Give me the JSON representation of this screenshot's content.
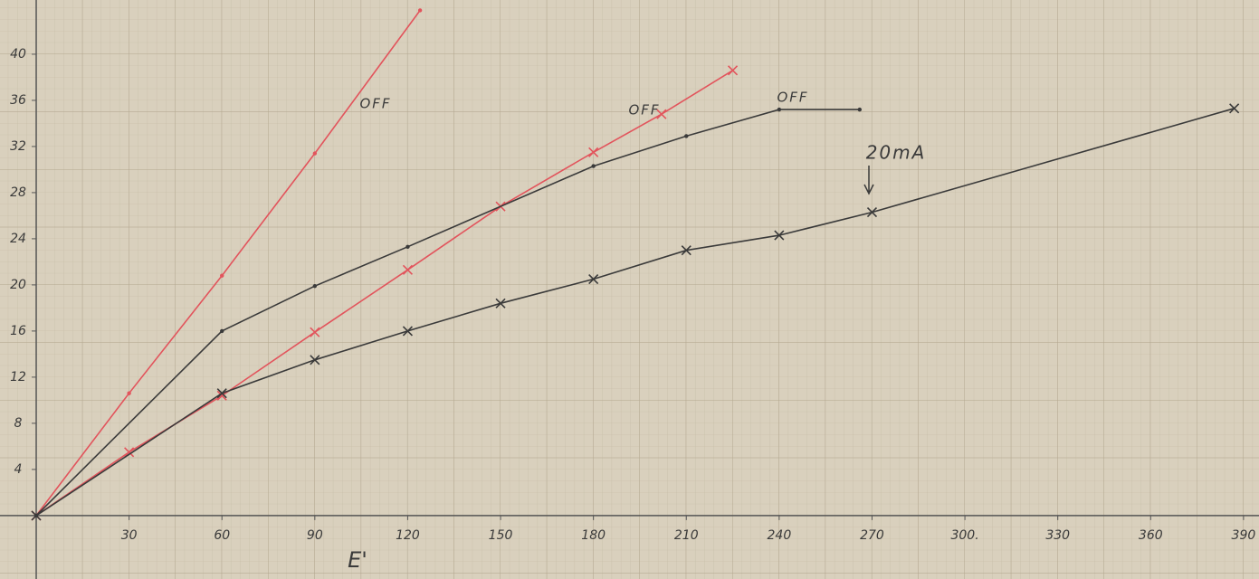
{
  "chart_data": {
    "type": "line",
    "x_label": "E'",
    "xlim": [
      -11.7,
      395
    ],
    "ylim": [
      -5.5,
      44.7
    ],
    "xticks": [
      30,
      60,
      90,
      120,
      150,
      180,
      210,
      240,
      270,
      {
        "value": 300,
        "label": "300."
      },
      330,
      360,
      390
    ],
    "yticks": [
      4,
      8,
      12,
      16,
      20,
      24,
      28,
      32,
      36,
      40
    ],
    "grid": true,
    "series": [
      {
        "color": "#e2545c",
        "marker": "dot",
        "x": [
          0,
          30,
          60,
          90,
          124
        ],
        "values": [
          0,
          10.6,
          20.8,
          31.4,
          43.8
        ]
      },
      {
        "color": "#e2545c",
        "marker": "x",
        "x": [
          0,
          30,
          60,
          90,
          120,
          150,
          180,
          202,
          225
        ],
        "values": [
          0,
          5.5,
          10.4,
          15.9,
          21.3,
          26.8,
          31.5,
          34.8,
          38.6
        ]
      },
      {
        "color": "#3a3a3a",
        "marker": "dot",
        "x": [
          0,
          60,
          90,
          120,
          180,
          210,
          240,
          266
        ],
        "values": [
          0,
          16,
          19.9,
          23.3,
          30.3,
          32.9,
          35.2,
          35.2
        ]
      },
      {
        "color": "#3a3a3a",
        "marker": "x",
        "x": [
          0,
          60,
          90,
          120,
          150,
          180,
          210,
          240,
          270,
          387
        ],
        "values": [
          0,
          10.6,
          13.5,
          16,
          18.4,
          20.5,
          23,
          24.3,
          26.3,
          35.3
        ]
      }
    ],
    "annotations": [
      "OFF",
      "OFF",
      "OFF",
      "20mA"
    ]
  }
}
